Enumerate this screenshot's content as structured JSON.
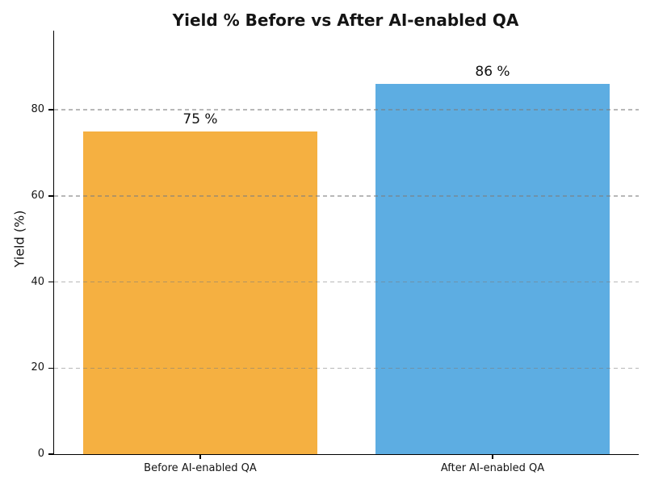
{
  "chart_data": {
    "type": "bar",
    "title": "Yield % Before vs After AI-enabled QA",
    "xlabel": "",
    "ylabel": "Yield (%)",
    "categories": [
      "Before AI-enabled QA",
      "After AI-enabled QA"
    ],
    "values": [
      75,
      86
    ],
    "bar_labels": [
      "75 %",
      "86 %"
    ],
    "bar_colors": [
      "#f5b041",
      "#5dade2"
    ],
    "yticks": [
      0,
      20,
      40,
      60,
      80
    ],
    "ylim": [
      0,
      98.4
    ],
    "grid": "horizontal-dashed-over-bars",
    "legend": "none",
    "background_color": "#ffffff",
    "axis_color": "#000000"
  }
}
